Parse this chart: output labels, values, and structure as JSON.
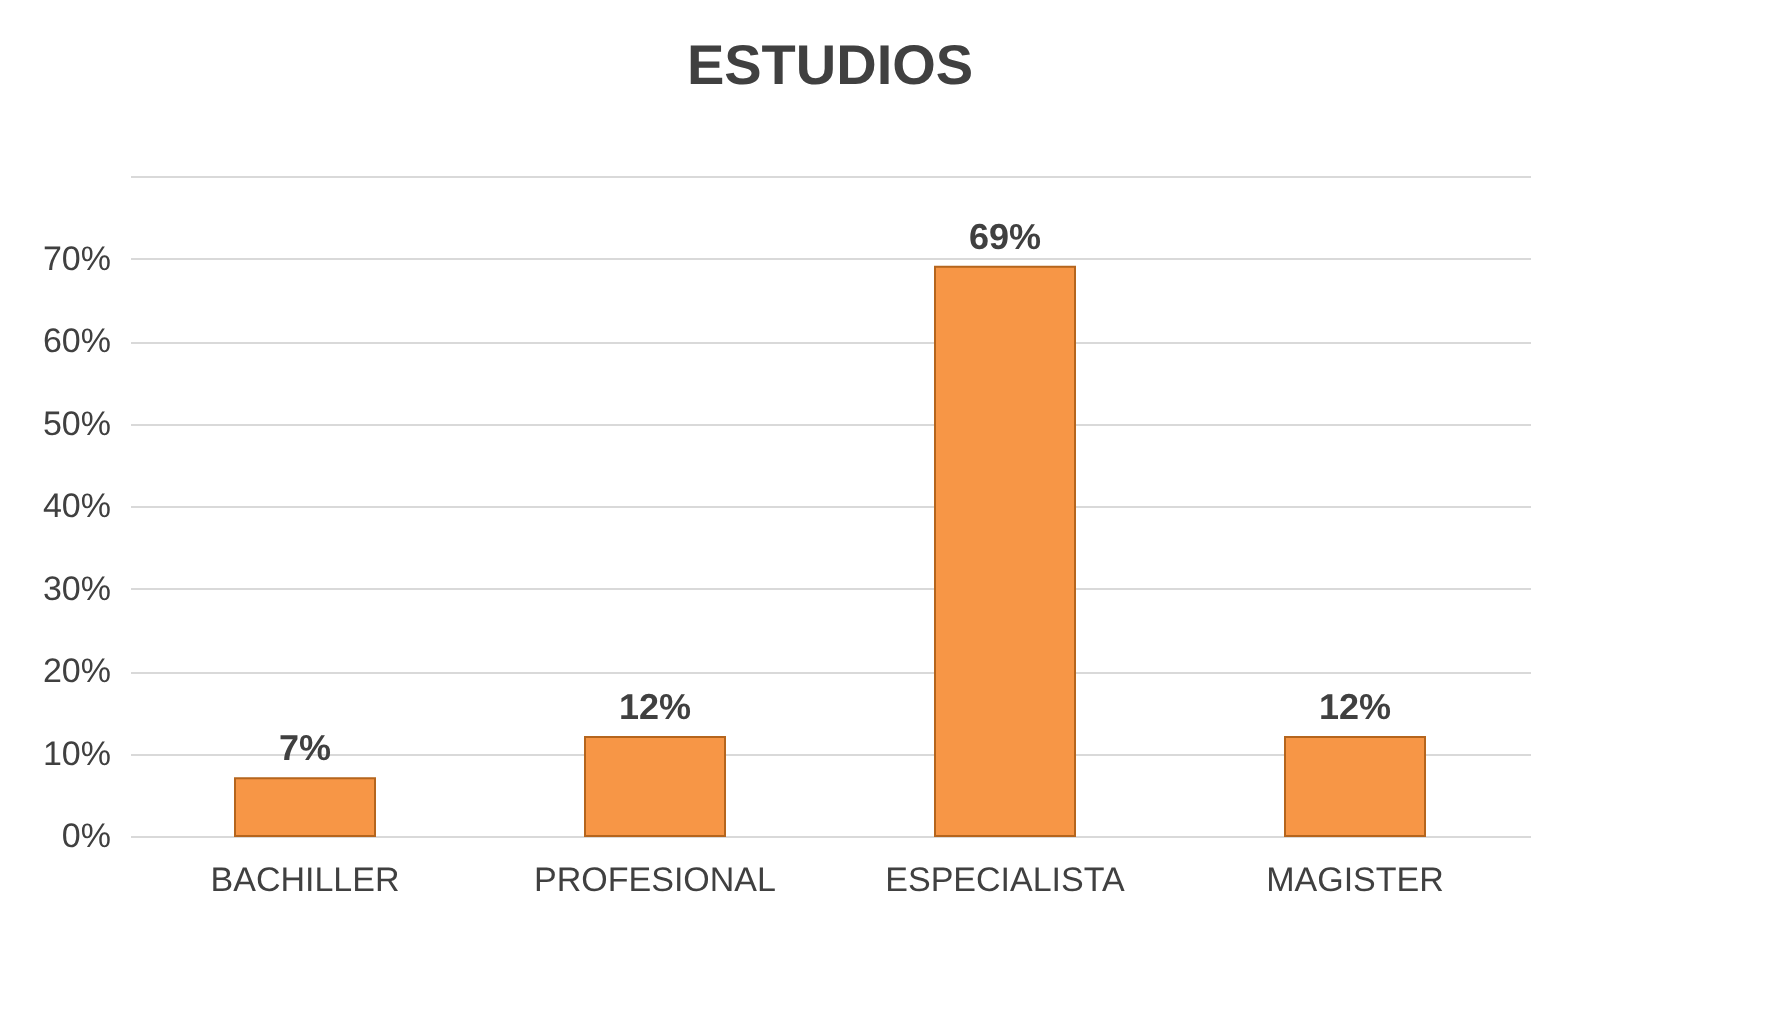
{
  "chart_data": {
    "type": "bar",
    "title": "ESTUDIOS",
    "categories": [
      "BACHILLER",
      "PROFESIONAL",
      "ESPECIALISTA",
      "MAGISTER"
    ],
    "values": [
      7,
      12,
      69,
      12
    ],
    "value_labels": [
      "7%",
      "12%",
      "69%",
      "12%"
    ],
    "color": "#f79646",
    "ylim": [
      0,
      80
    ],
    "yticks": [
      {
        "value": 0,
        "label": "0%"
      },
      {
        "value": 10,
        "label": "10%"
      },
      {
        "value": 20,
        "label": "20%"
      },
      {
        "value": 30,
        "label": "30%"
      },
      {
        "value": 40,
        "label": "40%"
      },
      {
        "value": 50,
        "label": "50%"
      },
      {
        "value": 60,
        "label": "60%"
      },
      {
        "value": 70,
        "label": "70%"
      },
      {
        "value": 80,
        "label": null
      }
    ],
    "grid": "y"
  }
}
